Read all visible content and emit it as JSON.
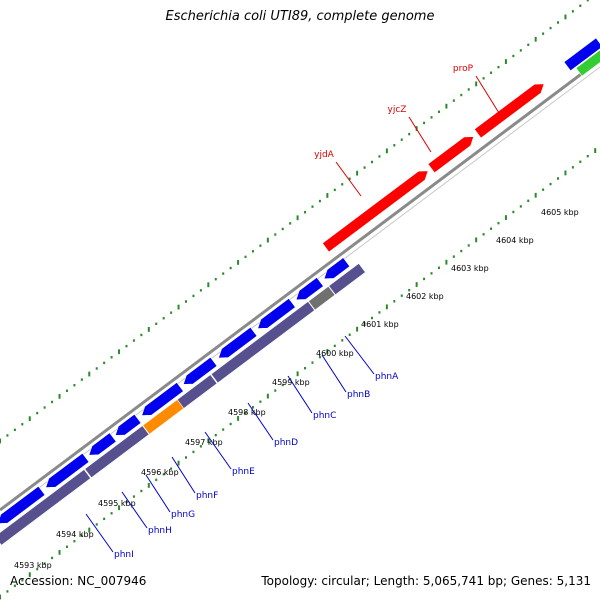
{
  "title": "Escherichia coli UTI89, complete genome",
  "footer": {
    "accession": "Accession: NC_007946",
    "summary": "Topology: circular; Length: 5,065,741 bp; Genes: 5,131"
  },
  "colors": {
    "backbone": "#8a8a8a",
    "dots": "#2a8a2a",
    "forward_gene": "#ff0000",
    "reverse_gene": "#0000ee",
    "reverse_track": "#56508f",
    "other_gene": "#ff8c00",
    "grey_gene": "#707070",
    "green_gene": "#33cc33",
    "forward_label": "#dd0000",
    "reverse_label": "#0000cc"
  },
  "scale": {
    "unit": "kbp",
    "ticks": [
      4593,
      4594,
      4595,
      4596,
      4597,
      4598,
      4599,
      4600,
      4601,
      4602,
      4603,
      4604,
      4605
    ],
    "tick_labels": [
      "4593 kbp",
      "4594 kbp",
      "4595 kbp",
      "4596 kbp",
      "4597 kbp",
      "4598 kbp",
      "4599 kbp",
      "4600 kbp",
      "4601 kbp",
      "4602 kbp",
      "4603 kbp",
      "4604 kbp",
      "4605 kbp"
    ]
  },
  "genes": {
    "forward": [
      {
        "name": "yjdA"
      },
      {
        "name": "yjcZ"
      },
      {
        "name": "proP"
      }
    ],
    "reverse": [
      {
        "name": "phnA"
      },
      {
        "name": "phnB"
      },
      {
        "name": "phnC"
      },
      {
        "name": "phnD"
      },
      {
        "name": "phnE"
      },
      {
        "name": "phnF"
      },
      {
        "name": "phnG"
      },
      {
        "name": "phnH"
      },
      {
        "name": "phnI"
      }
    ]
  }
}
